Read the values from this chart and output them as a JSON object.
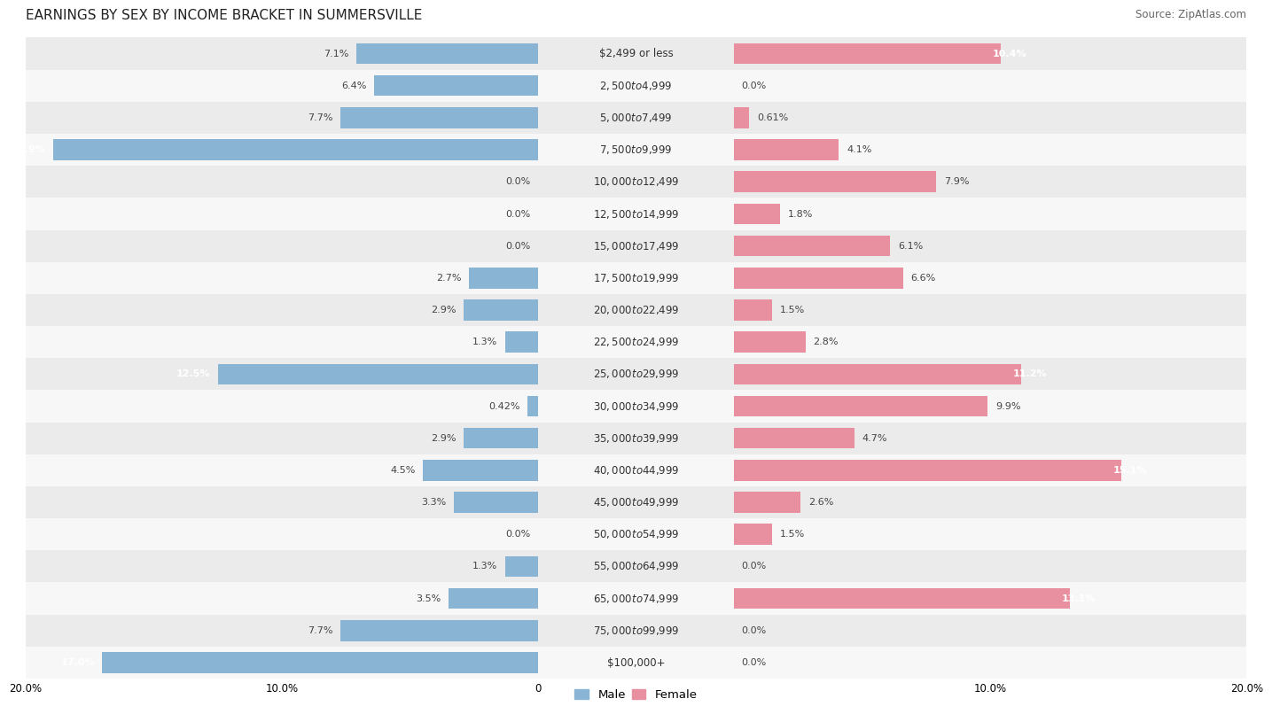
{
  "title": "EARNINGS BY SEX BY INCOME BRACKET IN SUMMERSVILLE",
  "source": "Source: ZipAtlas.com",
  "categories": [
    "$2,499 or less",
    "$2,500 to $4,999",
    "$5,000 to $7,499",
    "$7,500 to $9,999",
    "$10,000 to $12,499",
    "$12,500 to $14,999",
    "$15,000 to $17,499",
    "$17,500 to $19,999",
    "$20,000 to $22,499",
    "$22,500 to $24,999",
    "$25,000 to $29,999",
    "$30,000 to $34,999",
    "$35,000 to $39,999",
    "$40,000 to $44,999",
    "$45,000 to $49,999",
    "$50,000 to $54,999",
    "$55,000 to $64,999",
    "$65,000 to $74,999",
    "$75,000 to $99,999",
    "$100,000+"
  ],
  "male_values": [
    7.1,
    6.4,
    7.7,
    18.9,
    0.0,
    0.0,
    0.0,
    2.7,
    2.9,
    1.3,
    12.5,
    0.42,
    2.9,
    4.5,
    3.3,
    0.0,
    1.3,
    3.5,
    7.7,
    17.0
  ],
  "female_values": [
    10.4,
    0.0,
    0.61,
    4.1,
    7.9,
    1.8,
    6.1,
    6.6,
    1.5,
    2.8,
    11.2,
    9.9,
    4.7,
    15.1,
    2.6,
    1.5,
    0.0,
    13.1,
    0.0,
    0.0
  ],
  "male_color": "#8ab4d4",
  "female_color": "#e8909f",
  "male_label": "Male",
  "female_label": "Female",
  "xlim": 20.0,
  "row_color_even": "#ebebeb",
  "row_color_odd": "#f7f7f7",
  "bar_background": "#ffffff",
  "title_fontsize": 11,
  "source_fontsize": 8.5,
  "label_fontsize": 8.5,
  "value_fontsize": 8.0,
  "tick_fontsize": 8.5
}
